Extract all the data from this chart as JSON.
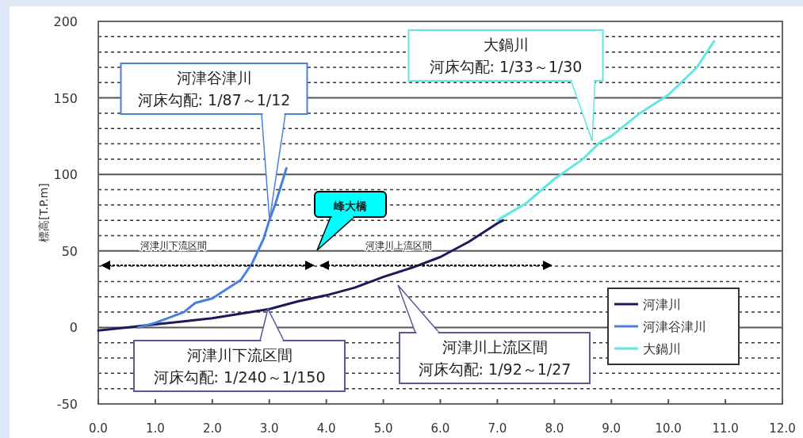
{
  "chart_data": {
    "type": "line",
    "ylabel": "標高[T.P.m]",
    "xlim": [
      0,
      12
    ],
    "xticks": [
      {
        "value": 0,
        "label": "0.0"
      },
      {
        "value": 1,
        "label": "1.0"
      },
      {
        "value": 2,
        "label": "2.0"
      },
      {
        "value": 3,
        "label": "3.0"
      },
      {
        "value": 4,
        "label": "4.0"
      },
      {
        "value": 5,
        "label": "5.0"
      },
      {
        "value": 6,
        "label": "6.0"
      },
      {
        "value": 7,
        "label": "7.0"
      },
      {
        "value": 8,
        "label": "8.0"
      },
      {
        "value": 9,
        "label": "9.0"
      },
      {
        "value": 10,
        "label": "10.0"
      },
      {
        "value": 11,
        "label": "11.0"
      },
      {
        "value": 12,
        "label": "12.0"
      }
    ],
    "ylim": [
      -50,
      200
    ],
    "yticks": [
      -50,
      0,
      50,
      100,
      150,
      200
    ],
    "grid": "y",
    "legend": "bottom right",
    "marker": "none",
    "line_style": "solid",
    "series": [
      {
        "name": "河津川",
        "color": "#1c1a5c",
        "x": [
          0,
          0.5,
          1.0,
          1.5,
          2.0,
          2.5,
          3.0,
          3.5,
          4.0,
          4.5,
          5.0,
          5.5,
          6.0,
          6.5,
          7.0,
          7.1
        ],
        "values": [
          -2,
          0,
          2,
          4,
          6,
          9,
          12,
          17,
          21,
          26,
          33,
          39,
          46,
          56,
          68,
          70
        ]
      },
      {
        "name": "河津谷津川",
        "color": "#4a7fe0",
        "x": [
          0.7,
          1.0,
          1.5,
          1.7,
          2.0,
          2.5,
          2.7,
          2.9,
          3.0,
          3.1,
          3.3
        ],
        "values": [
          0,
          3,
          10,
          16,
          19,
          31,
          42,
          58,
          70,
          80,
          104
        ]
      },
      {
        "name": "大鍋川",
        "color": "#5fe8e0",
        "x": [
          7.0,
          7.5,
          8.0,
          8.5,
          8.8,
          9.0,
          9.5,
          10.0,
          10.5,
          10.8
        ],
        "values": [
          70,
          81,
          97,
          110,
          121,
          125,
          140,
          152,
          170,
          187
        ]
      }
    ],
    "annotations": [
      "河津谷津川",
      "河床勾配: 1/87～1/12",
      "大鍋川",
      "河床勾配: 1/33～1/30",
      "峰大橋",
      "河津川下流区間",
      "河床勾配: 1/240～1/150",
      "河津川上流区間",
      "河床勾配: 1/92～1/27",
      "河津川下流区間",
      "河津川上流区間"
    ]
  }
}
